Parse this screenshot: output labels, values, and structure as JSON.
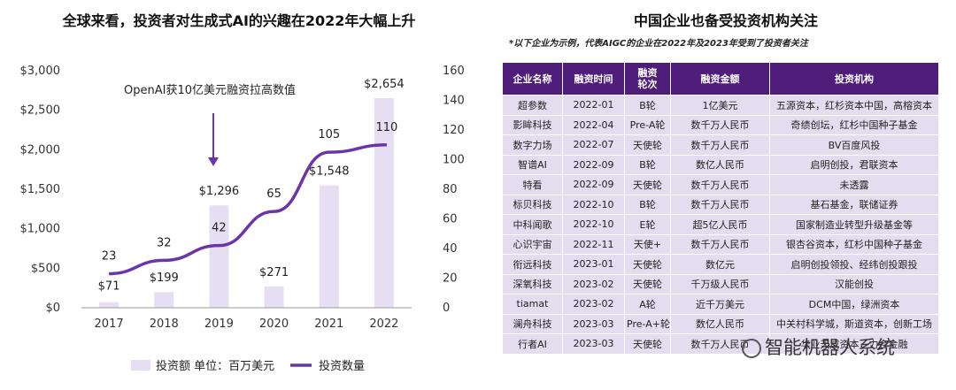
{
  "left": {
    "title": "全球来看，投资者对生成式AI的兴趣在2022年大幅上升",
    "annotation": "OpenAI获10亿美元融资拉高数值",
    "legend": {
      "bar_label": "投资额 单位：百万美元",
      "line_label": "投资数量"
    }
  },
  "chart_data": {
    "type": "bar+line",
    "title": "全球来看，投资者对生成式AI的兴趣在2022年大幅上升",
    "categories": [
      "2017",
      "2018",
      "2019",
      "2020",
      "2021",
      "2022"
    ],
    "series": [
      {
        "name": "投资额 单位：百万美元",
        "type": "bar",
        "axis": "left",
        "values": [
          71,
          199,
          1296,
          271,
          1548,
          2654
        ],
        "labels": [
          "$71",
          "$199",
          "$1,296",
          "$271",
          "$1,548",
          "$2,654"
        ]
      },
      {
        "name": "投资数量",
        "type": "line",
        "axis": "right",
        "values": [
          23,
          32,
          42,
          65,
          105,
          110
        ],
        "labels": [
          "23",
          "32",
          "42",
          "65",
          "105",
          "110"
        ]
      }
    ],
    "y_left": {
      "range": [
        0,
        3000
      ],
      "ticks": [
        0,
        500,
        1000,
        1500,
        2000,
        2500,
        3000
      ],
      "tick_labels": [
        "$0",
        "$500",
        "$1,000",
        "$1,500",
        "$2,000",
        "$2,500",
        "$3,000"
      ]
    },
    "y_right": {
      "range": [
        0,
        160
      ],
      "ticks": [
        0,
        20,
        40,
        60,
        80,
        100,
        120,
        140,
        160
      ],
      "tick_labels": [
        "0",
        "20",
        "40",
        "60",
        "80",
        "100",
        "120",
        "140",
        "160"
      ]
    },
    "grid": false,
    "legend_position": "bottom",
    "colors": {
      "bar": "#e6def3",
      "line": "#6b35a8"
    }
  },
  "right": {
    "title": "中国企业也备受投资机构关注",
    "note": "*以下企业为示例，代表AIGC的企业在2022年及2023年受到了投资者关注",
    "headers": [
      "企业名称",
      "融资时间",
      "融资\n轮次",
      "融资金额",
      "投资机构"
    ],
    "rows": [
      [
        "超参数",
        "2022-01",
        "B轮",
        "1亿美元",
        "五源资本，红杉资本中国，高榕资本"
      ],
      [
        "影眸科技",
        "2022-04",
        "Pre-A轮",
        "数千万人民币",
        "奇绩创坛，红杉中国种子基金"
      ],
      [
        "数字力场",
        "2022-07",
        "天使轮",
        "数千万人民币",
        "BV百度风投"
      ],
      [
        "智谱AI",
        "2022-09",
        "B轮",
        "数亿人民币",
        "启明创投，君联资本"
      ],
      [
        "特看",
        "2022-09",
        "天使轮",
        "数千万人民币",
        "未透露"
      ],
      [
        "标贝科技",
        "2022-10",
        "B轮",
        "数千万人民币",
        "基石基金，联储证券"
      ],
      [
        "中科闻歌",
        "2022-10",
        "E轮",
        "超5亿人民币",
        "国家制造业转型升级基金等"
      ],
      [
        "心识宇宙",
        "2022-11",
        "天使+",
        "数千万人民币",
        "银杏谷资本，红杉中国种子基金"
      ],
      [
        "衔远科技",
        "2023-01",
        "天使轮",
        "数亿元",
        "启明创投领投、经纬创投跟投"
      ],
      [
        "深氧科技",
        "2023-02",
        "天使轮",
        "千万级人民币",
        "汉能创投"
      ],
      [
        "tiamat",
        "2023-02",
        "A轮",
        "近千万美元",
        "DCM中国，绿洲资本"
      ],
      [
        "澜舟科技",
        "2023-03",
        "Pre-A+轮",
        "数亿人民币",
        "中关村科学城，斯道资本，创新工场"
      ],
      [
        "行者AI",
        "2023-03",
        "天使轮",
        "数千万人民币",
        "华业天成资本，力合金融"
      ]
    ],
    "header_color": "#4e1e7a",
    "row_color": "#e4dcef"
  },
  "watermark": "智能机器人系统"
}
